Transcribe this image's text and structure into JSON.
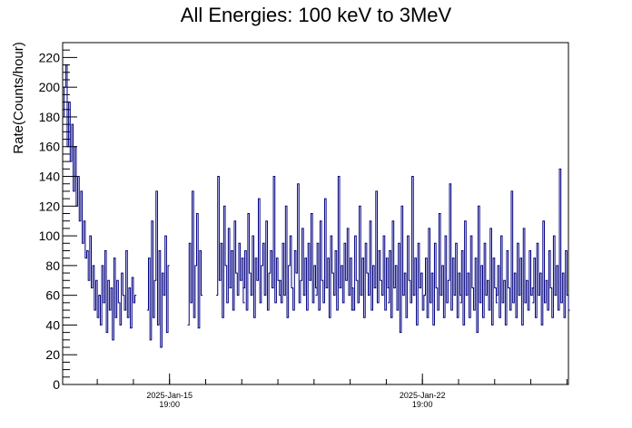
{
  "chart_data": {
    "type": "line",
    "title": "All Energies:  100 keV to 3MeV",
    "xlabel": "",
    "ylabel": "Rate(Counts/hour)",
    "ylim": [
      0,
      230
    ],
    "yticks": [
      0,
      20,
      40,
      60,
      80,
      100,
      120,
      140,
      160,
      180,
      200,
      220
    ],
    "xticks": [
      {
        "date": "2025-Jan-15",
        "time": "19:00"
      },
      {
        "date": "2025-Jan-22",
        "time": "19:00"
      }
    ],
    "x_range": [
      "2025-Jan-12 20:00",
      "2025-Jan-26 20:00"
    ],
    "series": [
      {
        "color": "#00007f",
        "sampling": "hourly",
        "segments": [
          {
            "start": "2025-Jan-12 20:00",
            "end": "2025-Jan-13 20:00",
            "values": [
              180,
              200,
              215,
              160,
              190,
              150,
              175,
              130,
              160,
              120,
              140,
              110,
              130,
              95,
              110,
              85,
              90,
              70,
              100,
              65,
              80,
              50,
              70,
              45,
              60
            ]
          },
          {
            "start": "2025-Jan-13 20:00",
            "end": "2025-Jan-14 20:00",
            "values": [
              60,
              40,
              80,
              55,
              90,
              35,
              70,
              50,
              65,
              30,
              85,
              45,
              70,
              55,
              40,
              75,
              60,
              50,
              90,
              45,
              65,
              38,
              72,
              55,
              60
            ]
          },
          {
            "start": "2025-Jan-15 04:00",
            "end": "2025-Jan-15 18:00",
            "values": [
              50,
              85,
              30,
              110,
              45,
              70,
              130,
              40,
              90,
              25,
              75,
              60,
              100,
              35,
              80
            ]
          },
          {
            "start": "2025-Jan-16 07:00",
            "end": "2025-Jan-16 16:00",
            "values": [
              40,
              95,
              55,
              130,
              45,
              80,
              115,
              38,
              90,
              60
            ]
          },
          {
            "start": "2025-Jan-17 02:00",
            "end": "2025-Jan-17 20:00",
            "values": [
              60,
              140,
              70,
              95,
              45,
              120,
              80,
              55,
              105,
              65,
              90,
              50,
              110,
              75,
              60,
              95,
              70,
              85,
              55
            ]
          },
          {
            "start": "2025-Jan-17 20:00",
            "end": "2025-Jan-18 20:00",
            "values": [
              65,
              90,
              50,
              115,
              75,
              60,
              100,
              45,
              85,
              70,
              125,
              55,
              80,
              95,
              60,
              110,
              50,
              75,
              90,
              65,
              140,
              55,
              85,
              70,
              60
            ]
          },
          {
            "start": "2025-Jan-18 20:00",
            "end": "2025-Jan-19 20:00",
            "values": [
              70,
              55,
              95,
              60,
              120,
              45,
              80,
              100,
              65,
              50,
              90,
              75,
              135,
              55,
              70,
              105,
              60,
              85,
              50,
              95,
              70,
              115,
              55,
              80,
              65
            ]
          },
          {
            "start": "2025-Jan-19 20:00",
            "end": "2025-Jan-20 20:00",
            "values": [
              60,
              95,
              50,
              110,
              70,
              55,
              125,
              65,
              85,
              45,
              100,
              75,
              60,
              90,
              50,
              140,
              65,
              80,
              55,
              95,
              70,
              105,
              60,
              85,
              50
            ]
          },
          {
            "start": "2025-Jan-20 20:00",
            "end": "2025-Jan-21 20:00",
            "values": [
              65,
              50,
              100,
              70,
              55,
              120,
              60,
              85,
              45,
              95,
              75,
              60,
              110,
              50,
              80,
              65,
              130,
              55,
              90,
              70,
              60,
              100,
              50,
              85,
              65
            ]
          },
          {
            "start": "2025-Jan-21 20:00",
            "end": "2025-Jan-22 20:00",
            "values": [
              55,
              90,
              45,
              110,
              65,
              80,
              50,
              95,
              35,
              120,
              60,
              75,
              45,
              100,
              70,
              55,
              140,
              60,
              85,
              40,
              95,
              65,
              75,
              50,
              60
            ]
          },
          {
            "start": "2025-Jan-22 20:00",
            "end": "2025-Jan-23 20:00",
            "values": [
              60,
              85,
              45,
              105,
              55,
              75,
              40,
              95,
              65,
              50,
              115,
              60,
              80,
              45,
              100,
              55,
              70,
              135,
              50,
              85,
              60,
              95,
              45,
              75,
              60
            ]
          },
          {
            "start": "2025-Jan-23 20:00",
            "end": "2025-Jan-24 20:00",
            "values": [
              55,
              90,
              40,
              110,
              60,
              75,
              45,
              100,
              65,
              50,
              85,
              35,
              120,
              55,
              80,
              45,
              95,
              60,
              70,
              50,
              105,
              40,
              85,
              65,
              55
            ]
          },
          {
            "start": "2025-Jan-24 20:00",
            "end": "2025-Jan-25 20:00",
            "values": [
              60,
              80,
              45,
              100,
              55,
              70,
              40,
              90,
              65,
              50,
              130,
              55,
              75,
              45,
              95,
              60,
              85,
              40,
              105,
              55,
              70,
              50,
              90,
              60,
              65
            ]
          },
          {
            "start": "2025-Jan-25 20:00",
            "end": "2025-Jan-26 20:00",
            "values": [
              55,
              85,
              45,
              95,
              60,
              75,
              40,
              110,
              55,
              70,
              50,
              90,
              65,
              45,
              100,
              60,
              80,
              50,
              145,
              55,
              75,
              45,
              90,
              60,
              50
            ]
          }
        ]
      }
    ]
  }
}
